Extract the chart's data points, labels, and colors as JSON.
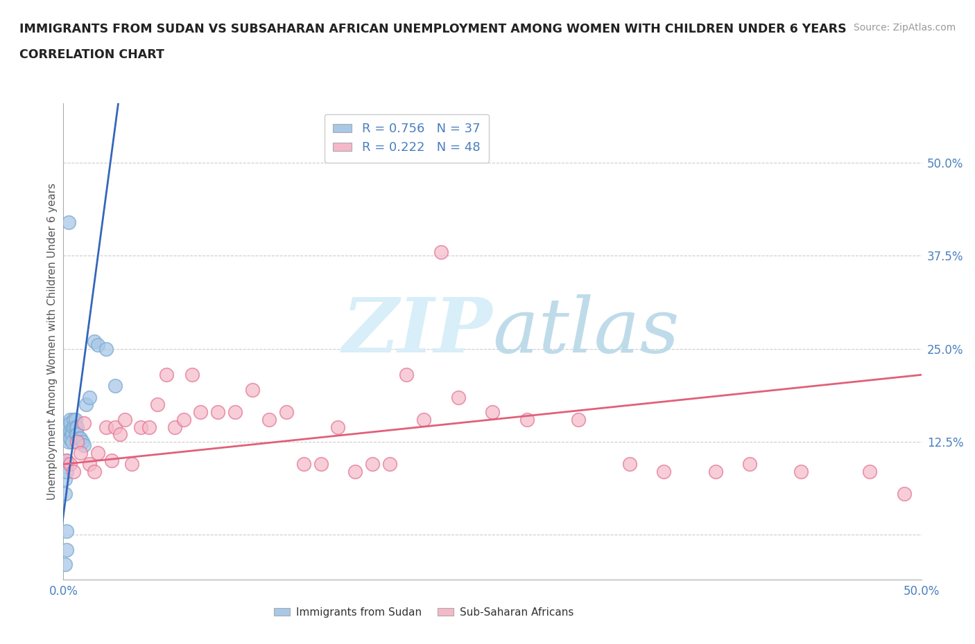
{
  "title_line1": "IMMIGRANTS FROM SUDAN VS SUBSAHARAN AFRICAN UNEMPLOYMENT AMONG WOMEN WITH CHILDREN UNDER 6 YEARS",
  "title_line2": "CORRELATION CHART",
  "source": "Source: ZipAtlas.com",
  "ylabel": "Unemployment Among Women with Children Under 6 years",
  "xlim": [
    0,
    0.5
  ],
  "ylim": [
    -0.06,
    0.58
  ],
  "R_sudan": 0.756,
  "N_sudan": 37,
  "R_subsaharan": 0.222,
  "N_subsaharan": 48,
  "blue_color": "#a8c8e8",
  "blue_edge_color": "#7aaad0",
  "blue_line_color": "#3366bb",
  "pink_color": "#f5b8c8",
  "pink_edge_color": "#e07090",
  "pink_line_color": "#e0607a",
  "watermark_color": "#d8eef8",
  "grid_color": "#cccccc",
  "background_color": "#ffffff",
  "title_color": "#222222",
  "axis_label_color": "#4a7fc0",
  "sudan_x": [
    0.001,
    0.001,
    0.002,
    0.002,
    0.002,
    0.003,
    0.003,
    0.003,
    0.003,
    0.004,
    0.004,
    0.004,
    0.004,
    0.005,
    0.005,
    0.005,
    0.006,
    0.006,
    0.007,
    0.007,
    0.007,
    0.008,
    0.008,
    0.009,
    0.01,
    0.011,
    0.012,
    0.013,
    0.015,
    0.018,
    0.02,
    0.025,
    0.03,
    0.001,
    0.002,
    0.002,
    0.003
  ],
  "sudan_y": [
    0.075,
    0.055,
    0.1,
    0.095,
    0.085,
    0.145,
    0.135,
    0.13,
    0.125,
    0.155,
    0.15,
    0.14,
    0.13,
    0.14,
    0.135,
    0.125,
    0.155,
    0.145,
    0.155,
    0.145,
    0.135,
    0.145,
    0.135,
    0.13,
    0.13,
    0.125,
    0.12,
    0.175,
    0.185,
    0.26,
    0.255,
    0.25,
    0.2,
    -0.04,
    -0.02,
    0.005,
    0.42
  ],
  "subsaharan_x": [
    0.002,
    0.004,
    0.006,
    0.008,
    0.01,
    0.012,
    0.015,
    0.018,
    0.02,
    0.025,
    0.028,
    0.03,
    0.033,
    0.036,
    0.04,
    0.045,
    0.05,
    0.055,
    0.06,
    0.065,
    0.07,
    0.075,
    0.08,
    0.09,
    0.1,
    0.11,
    0.12,
    0.13,
    0.14,
    0.15,
    0.16,
    0.17,
    0.18,
    0.19,
    0.2,
    0.21,
    0.22,
    0.23,
    0.25,
    0.27,
    0.3,
    0.33,
    0.35,
    0.38,
    0.4,
    0.43,
    0.47,
    0.49
  ],
  "subsaharan_y": [
    0.1,
    0.095,
    0.085,
    0.125,
    0.11,
    0.15,
    0.095,
    0.085,
    0.11,
    0.145,
    0.1,
    0.145,
    0.135,
    0.155,
    0.095,
    0.145,
    0.145,
    0.175,
    0.215,
    0.145,
    0.155,
    0.215,
    0.165,
    0.165,
    0.165,
    0.195,
    0.155,
    0.165,
    0.095,
    0.095,
    0.145,
    0.085,
    0.095,
    0.095,
    0.215,
    0.155,
    0.38,
    0.185,
    0.165,
    0.155,
    0.155,
    0.095,
    0.085,
    0.085,
    0.095,
    0.085,
    0.085,
    0.055
  ],
  "blue_line_x": [
    -0.005,
    0.032
  ],
  "blue_line_y": [
    -0.06,
    0.58
  ],
  "pink_line_x": [
    0.0,
    0.5
  ],
  "pink_line_y": [
    0.095,
    0.215
  ]
}
